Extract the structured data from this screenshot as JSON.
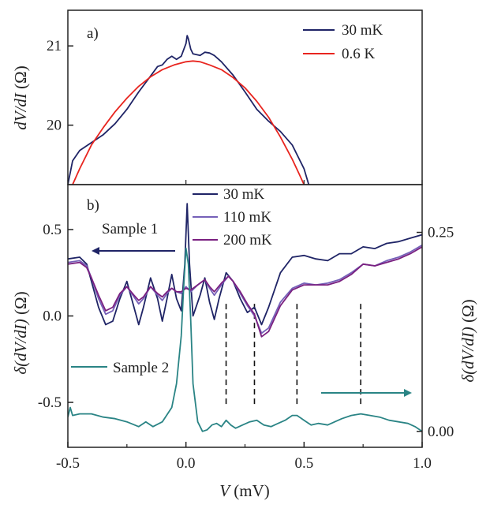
{
  "chart_data": [
    {
      "panel": "a)",
      "type": "line",
      "ylabel_parts": [
        "dV/dI",
        " (Ω)"
      ],
      "xlim": [
        -0.5,
        1.0
      ],
      "ylim": [
        19.25,
        21.45
      ],
      "yticks": [
        20,
        21
      ],
      "ytick_labels": [
        "20",
        "21"
      ],
      "legend_position": "top-right",
      "series": [
        {
          "name": "30 mK",
          "color": "#1f2466",
          "points": [
            [
              -0.5,
              19.25
            ],
            [
              -0.48,
              19.55
            ],
            [
              -0.45,
              19.68
            ],
            [
              -0.4,
              19.78
            ],
            [
              -0.35,
              19.88
            ],
            [
              -0.3,
              20.02
            ],
            [
              -0.25,
              20.2
            ],
            [
              -0.2,
              20.42
            ],
            [
              -0.15,
              20.62
            ],
            [
              -0.12,
              20.74
            ],
            [
              -0.1,
              20.76
            ],
            [
              -0.08,
              20.83
            ],
            [
              -0.06,
              20.87
            ],
            [
              -0.04,
              20.83
            ],
            [
              -0.02,
              20.87
            ],
            [
              0.0,
              21.03
            ],
            [
              0.005,
              21.13
            ],
            [
              0.01,
              21.09
            ],
            [
              0.02,
              20.96
            ],
            [
              0.03,
              20.9
            ],
            [
              0.06,
              20.88
            ],
            [
              0.08,
              20.92
            ],
            [
              0.1,
              20.91
            ],
            [
              0.12,
              20.88
            ],
            [
              0.15,
              20.8
            ],
            [
              0.2,
              20.63
            ],
            [
              0.25,
              20.42
            ],
            [
              0.3,
              20.2
            ],
            [
              0.35,
              20.05
            ],
            [
              0.4,
              19.92
            ],
            [
              0.45,
              19.75
            ],
            [
              0.5,
              19.45
            ],
            [
              0.52,
              19.25
            ]
          ]
        },
        {
          "name": "0.6 K",
          "color": "#e8251f",
          "points": [
            [
              -0.48,
              19.25
            ],
            [
              -0.45,
              19.45
            ],
            [
              -0.4,
              19.75
            ],
            [
              -0.35,
              19.97
            ],
            [
              -0.3,
              20.17
            ],
            [
              -0.25,
              20.34
            ],
            [
              -0.2,
              20.49
            ],
            [
              -0.15,
              20.61
            ],
            [
              -0.1,
              20.7
            ],
            [
              -0.05,
              20.76
            ],
            [
              0.0,
              20.8
            ],
            [
              0.03,
              20.81
            ],
            [
              0.06,
              20.8
            ],
            [
              0.1,
              20.76
            ],
            [
              0.15,
              20.7
            ],
            [
              0.2,
              20.6
            ],
            [
              0.25,
              20.47
            ],
            [
              0.3,
              20.3
            ],
            [
              0.35,
              20.1
            ],
            [
              0.4,
              19.85
            ],
            [
              0.45,
              19.57
            ],
            [
              0.48,
              19.38
            ],
            [
              0.5,
              19.25
            ]
          ]
        }
      ]
    },
    {
      "panel": "b)",
      "type": "line",
      "xlabel_parts": [
        "V",
        " (mV)"
      ],
      "ylabel_parts": [
        "δ(dV/dI)",
        " (Ω)"
      ],
      "ylabel_right_parts": [
        "δ(dV/dI)",
        " (Ω)"
      ],
      "xlim": [
        -0.5,
        1.0
      ],
      "ylim": [
        -0.76,
        0.76
      ],
      "xticks": [
        -0.5,
        0.0,
        0.5,
        1.0
      ],
      "xtick_labels": [
        "-0.5",
        "0.0",
        "0.5",
        "1.0"
      ],
      "yticks": [
        -0.5,
        0.0,
        0.5
      ],
      "ytick_labels": [
        "-0.5",
        "0.0",
        "0.5"
      ],
      "ylim_right": [
        -0.02,
        0.31
      ],
      "yticks_right": [
        0.0,
        0.25
      ],
      "ytick_right_labels": [
        "0.00",
        "0.25"
      ],
      "legend_position": "top-center",
      "annotations": {
        "sample1": "Sample 1",
        "sample2": "Sample 2"
      },
      "dashed_markers_mV": [
        0.17,
        0.29,
        0.47,
        0.74
      ],
      "series": [
        {
          "name": "30 mK",
          "color": "#1f2466",
          "points": [
            [
              -0.5,
              0.33
            ],
            [
              -0.45,
              0.34
            ],
            [
              -0.42,
              0.3
            ],
            [
              -0.4,
              0.2
            ],
            [
              -0.37,
              0.05
            ],
            [
              -0.34,
              -0.05
            ],
            [
              -0.31,
              -0.03
            ],
            [
              -0.28,
              0.1
            ],
            [
              -0.25,
              0.2
            ],
            [
              -0.22,
              0.05
            ],
            [
              -0.2,
              -0.05
            ],
            [
              -0.18,
              0.05
            ],
            [
              -0.15,
              0.22
            ],
            [
              -0.12,
              0.1
            ],
            [
              -0.1,
              -0.03
            ],
            [
              -0.08,
              0.1
            ],
            [
              -0.06,
              0.24
            ],
            [
              -0.04,
              0.1
            ],
            [
              -0.02,
              0.03
            ],
            [
              -0.005,
              0.3
            ],
            [
              0.005,
              0.65
            ],
            [
              0.015,
              0.3
            ],
            [
              0.03,
              0.0
            ],
            [
              0.06,
              0.12
            ],
            [
              0.08,
              0.22
            ],
            [
              0.1,
              0.08
            ],
            [
              0.12,
              -0.02
            ],
            [
              0.14,
              0.1
            ],
            [
              0.17,
              0.25
            ],
            [
              0.2,
              0.2
            ],
            [
              0.23,
              0.1
            ],
            [
              0.26,
              0.02
            ],
            [
              0.29,
              0.05
            ],
            [
              0.32,
              -0.05
            ],
            [
              0.35,
              0.05
            ],
            [
              0.4,
              0.25
            ],
            [
              0.45,
              0.34
            ],
            [
              0.5,
              0.35
            ],
            [
              0.55,
              0.33
            ],
            [
              0.6,
              0.32
            ],
            [
              0.65,
              0.36
            ],
            [
              0.7,
              0.36
            ],
            [
              0.75,
              0.4
            ],
            [
              0.8,
              0.39
            ],
            [
              0.85,
              0.42
            ],
            [
              0.9,
              0.43
            ],
            [
              0.95,
              0.45
            ],
            [
              1.0,
              0.47
            ]
          ]
        },
        {
          "name": "110 mK",
          "color": "#7560b8",
          "points": [
            [
              -0.5,
              0.31
            ],
            [
              -0.45,
              0.32
            ],
            [
              -0.42,
              0.29
            ],
            [
              -0.4,
              0.22
            ],
            [
              -0.37,
              0.1
            ],
            [
              -0.34,
              0.01
            ],
            [
              -0.31,
              0.03
            ],
            [
              -0.28,
              0.12
            ],
            [
              -0.25,
              0.17
            ],
            [
              -0.22,
              0.11
            ],
            [
              -0.2,
              0.07
            ],
            [
              -0.18,
              0.1
            ],
            [
              -0.15,
              0.17
            ],
            [
              -0.12,
              0.12
            ],
            [
              -0.1,
              0.09
            ],
            [
              -0.08,
              0.13
            ],
            [
              -0.06,
              0.16
            ],
            [
              -0.04,
              0.14
            ],
            [
              -0.02,
              0.13
            ],
            [
              0.0,
              0.17
            ],
            [
              0.02,
              0.14
            ],
            [
              0.05,
              0.18
            ],
            [
              0.08,
              0.21
            ],
            [
              0.1,
              0.16
            ],
            [
              0.12,
              0.12
            ],
            [
              0.15,
              0.18
            ],
            [
              0.18,
              0.23
            ],
            [
              0.2,
              0.2
            ],
            [
              0.23,
              0.13
            ],
            [
              0.26,
              0.06
            ],
            [
              0.29,
              0.0
            ],
            [
              0.32,
              -0.1
            ],
            [
              0.35,
              -0.07
            ],
            [
              0.4,
              0.08
            ],
            [
              0.45,
              0.16
            ],
            [
              0.5,
              0.19
            ],
            [
              0.55,
              0.18
            ],
            [
              0.6,
              0.19
            ],
            [
              0.65,
              0.21
            ],
            [
              0.7,
              0.25
            ],
            [
              0.75,
              0.3
            ],
            [
              0.8,
              0.29
            ],
            [
              0.85,
              0.32
            ],
            [
              0.9,
              0.34
            ],
            [
              0.95,
              0.37
            ],
            [
              1.0,
              0.41
            ]
          ]
        },
        {
          "name": "200 mK",
          "color": "#7a2080",
          "points": [
            [
              -0.5,
              0.3
            ],
            [
              -0.45,
              0.31
            ],
            [
              -0.42,
              0.28
            ],
            [
              -0.4,
              0.22
            ],
            [
              -0.37,
              0.12
            ],
            [
              -0.34,
              0.03
            ],
            [
              -0.31,
              0.05
            ],
            [
              -0.28,
              0.13
            ],
            [
              -0.25,
              0.17
            ],
            [
              -0.22,
              0.12
            ],
            [
              -0.2,
              0.09
            ],
            [
              -0.18,
              0.11
            ],
            [
              -0.15,
              0.17
            ],
            [
              -0.12,
              0.13
            ],
            [
              -0.1,
              0.11
            ],
            [
              -0.08,
              0.14
            ],
            [
              -0.06,
              0.16
            ],
            [
              -0.04,
              0.14
            ],
            [
              -0.02,
              0.14
            ],
            [
              0.0,
              0.16
            ],
            [
              0.02,
              0.15
            ],
            [
              0.05,
              0.18
            ],
            [
              0.08,
              0.21
            ],
            [
              0.1,
              0.17
            ],
            [
              0.12,
              0.14
            ],
            [
              0.15,
              0.19
            ],
            [
              0.18,
              0.23
            ],
            [
              0.2,
              0.2
            ],
            [
              0.23,
              0.14
            ],
            [
              0.26,
              0.07
            ],
            [
              0.29,
              0.01
            ],
            [
              0.32,
              -0.12
            ],
            [
              0.35,
              -0.09
            ],
            [
              0.4,
              0.06
            ],
            [
              0.45,
              0.15
            ],
            [
              0.5,
              0.18
            ],
            [
              0.55,
              0.18
            ],
            [
              0.6,
              0.18
            ],
            [
              0.65,
              0.2
            ],
            [
              0.7,
              0.24
            ],
            [
              0.75,
              0.3
            ],
            [
              0.8,
              0.29
            ],
            [
              0.85,
              0.31
            ],
            [
              0.9,
              0.33
            ],
            [
              0.95,
              0.36
            ],
            [
              1.0,
              0.4
            ]
          ]
        },
        {
          "name": "Sample 2",
          "color": "#2a8485",
          "axis": "right",
          "points": [
            [
              -0.5,
              0.018
            ],
            [
              -0.49,
              0.03
            ],
            [
              -0.48,
              0.02
            ],
            [
              -0.45,
              0.022
            ],
            [
              -0.4,
              0.022
            ],
            [
              -0.35,
              0.018
            ],
            [
              -0.3,
              0.016
            ],
            [
              -0.25,
              0.012
            ],
            [
              -0.2,
              0.006
            ],
            [
              -0.17,
              0.012
            ],
            [
              -0.14,
              0.006
            ],
            [
              -0.1,
              0.012
            ],
            [
              -0.06,
              0.03
            ],
            [
              -0.04,
              0.06
            ],
            [
              -0.02,
              0.12
            ],
            [
              -0.01,
              0.18
            ],
            [
              0.0,
              0.23
            ],
            [
              0.01,
              0.21
            ],
            [
              0.02,
              0.14
            ],
            [
              0.03,
              0.06
            ],
            [
              0.05,
              0.012
            ],
            [
              0.07,
              0.0
            ],
            [
              0.09,
              0.002
            ],
            [
              0.11,
              0.008
            ],
            [
              0.13,
              0.01
            ],
            [
              0.15,
              0.006
            ],
            [
              0.17,
              0.014
            ],
            [
              0.19,
              0.008
            ],
            [
              0.21,
              0.004
            ],
            [
              0.24,
              0.008
            ],
            [
              0.27,
              0.012
            ],
            [
              0.3,
              0.014
            ],
            [
              0.33,
              0.008
            ],
            [
              0.36,
              0.006
            ],
            [
              0.39,
              0.01
            ],
            [
              0.42,
              0.014
            ],
            [
              0.45,
              0.02
            ],
            [
              0.47,
              0.02
            ],
            [
              0.5,
              0.014
            ],
            [
              0.53,
              0.008
            ],
            [
              0.56,
              0.01
            ],
            [
              0.6,
              0.008
            ],
            [
              0.63,
              0.012
            ],
            [
              0.66,
              0.016
            ],
            [
              0.7,
              0.02
            ],
            [
              0.74,
              0.022
            ],
            [
              0.78,
              0.02
            ],
            [
              0.82,
              0.018
            ],
            [
              0.86,
              0.014
            ],
            [
              0.9,
              0.012
            ],
            [
              0.94,
              0.01
            ],
            [
              0.97,
              0.006
            ],
            [
              1.0,
              0.0
            ]
          ]
        }
      ]
    }
  ]
}
